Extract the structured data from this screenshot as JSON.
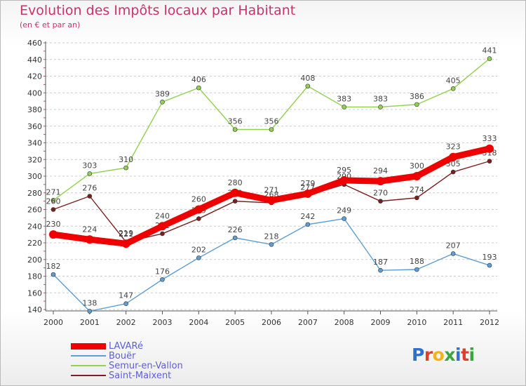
{
  "header": {
    "title": "Evolution des Impôts locaux par Habitant",
    "subtitle": "(en € et par an)"
  },
  "logo": {
    "text": "Proxiti",
    "colors": [
      "#2f6fcf",
      "#e0402a",
      "#f3b21b",
      "#3aa63a",
      "#2f6fcf",
      "#e0402a",
      "#3aa63a"
    ]
  },
  "chart_data": {
    "type": "line",
    "title": "Evolution des Impôts locaux par Habitant",
    "subtitle": "(en € et par an)",
    "x": [
      "2000",
      "2001",
      "2002",
      "2003",
      "2004",
      "2005",
      "2006",
      "2007",
      "2008",
      "2009",
      "2010",
      "2011",
      "2012"
    ],
    "ylim": [
      140,
      460
    ],
    "yticks": [
      140,
      160,
      180,
      200,
      220,
      240,
      260,
      280,
      300,
      320,
      340,
      360,
      380,
      400,
      420,
      440,
      460
    ],
    "grid": "horizontal dashed",
    "legend_position": "bottom-left",
    "series": [
      {
        "name": "LAVARé",
        "color": "#ee0000",
        "values": [
          230,
          224,
          219,
          240,
          260,
          280,
          271,
          279,
          295,
          294,
          300,
          323,
          333
        ]
      },
      {
        "name": "Bouër",
        "color": "#5f9ed2",
        "values": [
          182,
          138,
          147,
          176,
          202,
          226,
          218,
          242,
          249,
          187,
          188,
          207,
          193
        ]
      },
      {
        "name": "Semur-en-Vallon",
        "color": "#92d050",
        "values": [
          271,
          303,
          310,
          389,
          406,
          356,
          356,
          408,
          383,
          383,
          386,
          405,
          441
        ]
      },
      {
        "name": "Saint-Maixent",
        "color": "#7a1e1e",
        "values": [
          260,
          276,
          221,
          231,
          249,
          270,
          268,
          277,
          290,
          270,
          274,
          305,
          318
        ]
      }
    ]
  }
}
